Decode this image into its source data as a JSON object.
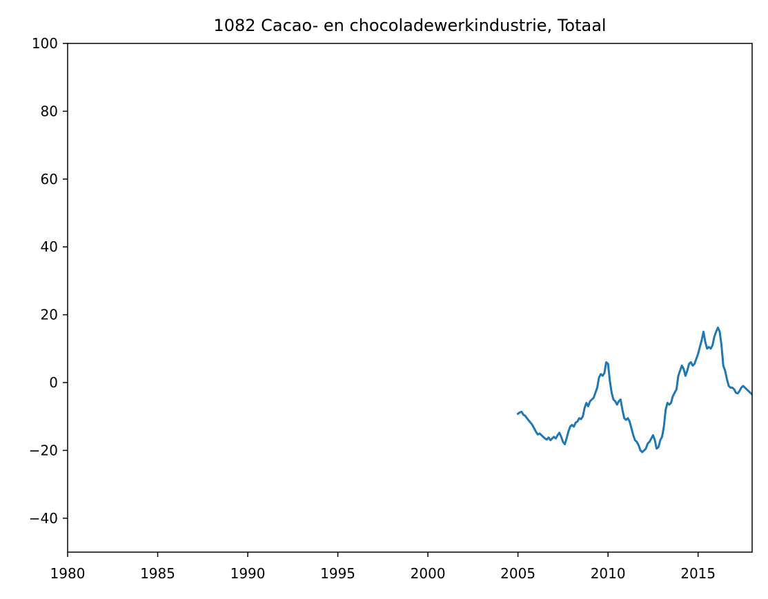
{
  "chart_data": {
    "type": "line",
    "title": "1082 Cacao- en chocoladewerkindustrie, Totaal",
    "xlabel": "",
    "ylabel": "",
    "xlim": [
      1980,
      2018
    ],
    "ylim": [
      -50,
      100
    ],
    "xticks": [
      1980,
      1985,
      1990,
      1995,
      2000,
      2005,
      2010,
      2015
    ],
    "xtick_labels": [
      "1980",
      "1985",
      "1990",
      "1995",
      "2000",
      "2005",
      "2010",
      "2015"
    ],
    "yticks": [
      -40,
      -20,
      0,
      20,
      40,
      60,
      80,
      100
    ],
    "ytick_labels": [
      "−40",
      "−20",
      "0",
      "20",
      "40",
      "60",
      "80",
      "100"
    ],
    "grid": false,
    "series": [
      {
        "color": "#1f77b4",
        "x": [
          2005.0,
          2005.1,
          2005.2,
          2005.3,
          2005.4,
          2005.5,
          2005.6,
          2005.7,
          2005.8,
          2005.9,
          2006.0,
          2006.1,
          2006.2,
          2006.3,
          2006.4,
          2006.5,
          2006.6,
          2006.7,
          2006.8,
          2006.9,
          2007.0,
          2007.1,
          2007.2,
          2007.3,
          2007.4,
          2007.5,
          2007.6,
          2007.7,
          2007.8,
          2007.9,
          2008.0,
          2008.1,
          2008.2,
          2008.3,
          2008.4,
          2008.5,
          2008.6,
          2008.7,
          2008.8,
          2008.9,
          2009.0,
          2009.1,
          2009.2,
          2009.3,
          2009.4,
          2009.5,
          2009.6,
          2009.7,
          2009.8,
          2009.9,
          2010.0,
          2010.1,
          2010.2,
          2010.3,
          2010.4,
          2010.5,
          2010.6,
          2010.7,
          2010.8,
          2010.9,
          2011.0,
          2011.1,
          2011.2,
          2011.3,
          2011.4,
          2011.5,
          2011.6,
          2011.7,
          2011.8,
          2011.9,
          2012.0,
          2012.1,
          2012.2,
          2012.3,
          2012.4,
          2012.5,
          2012.6,
          2012.7,
          2012.8,
          2012.9,
          2013.0,
          2013.1,
          2013.2,
          2013.3,
          2013.4,
          2013.5,
          2013.6,
          2013.7,
          2013.8,
          2013.9,
          2014.0,
          2014.1,
          2014.2,
          2014.3,
          2014.4,
          2014.5,
          2014.6,
          2014.7,
          2014.8,
          2014.9,
          2015.0,
          2015.1,
          2015.2,
          2015.3,
          2015.4,
          2015.5,
          2015.6,
          2015.7,
          2015.8,
          2015.9,
          2016.0,
          2016.1,
          2016.2,
          2016.3,
          2016.4,
          2016.5,
          2016.6,
          2016.7,
          2016.8,
          2016.9,
          2017.0,
          2017.1,
          2017.2,
          2017.3,
          2017.4,
          2017.5,
          2017.6,
          2017.7,
          2017.8,
          2017.9,
          2018.0
        ],
        "y": [
          -9.2,
          -8.8,
          -8.6,
          -9.5,
          -9.8,
          -10.5,
          -11.2,
          -11.8,
          -12.5,
          -13.5,
          -14.5,
          -15.3,
          -15.0,
          -15.5,
          -16.0,
          -16.5,
          -16.8,
          -16.2,
          -17.0,
          -16.5,
          -16.0,
          -16.5,
          -15.5,
          -14.8,
          -16.0,
          -17.5,
          -18.2,
          -16.5,
          -14.5,
          -13.0,
          -12.5,
          -13.0,
          -11.8,
          -11.5,
          -10.5,
          -10.8,
          -10.0,
          -7.5,
          -6.0,
          -7.0,
          -5.5,
          -5.0,
          -4.5,
          -3.0,
          -1.5,
          1.5,
          2.5,
          2.0,
          2.8,
          6.0,
          5.5,
          0.5,
          -3.0,
          -5.0,
          -5.5,
          -6.5,
          -5.5,
          -5.0,
          -8.0,
          -10.5,
          -11.0,
          -10.5,
          -11.5,
          -13.5,
          -15.5,
          -17.0,
          -17.5,
          -18.5,
          -20.0,
          -20.5,
          -20.0,
          -19.5,
          -18.0,
          -17.5,
          -16.5,
          -15.5,
          -17.0,
          -19.5,
          -19.0,
          -17.0,
          -16.0,
          -13.0,
          -8.0,
          -6.0,
          -6.5,
          -6.0,
          -4.0,
          -3.0,
          -2.0,
          2.0,
          3.5,
          5.0,
          4.0,
          2.0,
          3.5,
          5.5,
          6.0,
          5.0,
          5.5,
          7.0,
          8.5,
          10.5,
          12.5,
          15.0,
          12.0,
          10.0,
          10.5,
          10.0,
          11.0,
          13.5,
          15.0,
          16.2,
          15.0,
          11.0,
          5.0,
          3.5,
          1.0,
          -1.0,
          -1.5,
          -1.5,
          -2.0,
          -3.0,
          -3.2,
          -2.5,
          -1.5,
          -1.0,
          -1.5,
          -2.0,
          -2.5,
          -3.0,
          -3.5
        ]
      }
    ]
  }
}
